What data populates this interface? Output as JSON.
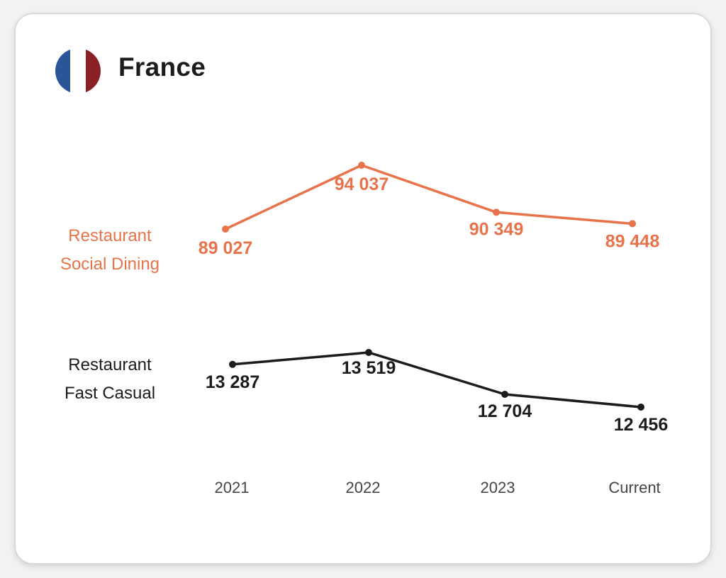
{
  "header": {
    "country": "France",
    "flag_icon": "france-flag-icon",
    "flag_colors": [
      "#2a5599",
      "#ffffff",
      "#8b2026"
    ]
  },
  "chart_data": {
    "type": "line",
    "title": "",
    "xlabel": "",
    "ylabel": "",
    "categories": [
      "2021",
      "2022",
      "2023",
      "Current"
    ],
    "series": [
      {
        "name": "Restaurant Social Dining",
        "name_lines": [
          "Restaurant",
          "Social Dining"
        ],
        "color": "#e8734a",
        "values": [
          89027,
          94037,
          90349,
          89448
        ],
        "labels": [
          "89 027",
          "94 037",
          "90 349",
          "89 448"
        ]
      },
      {
        "name": "Restaurant Fast Casual",
        "name_lines": [
          "Restaurant",
          "Fast Casual"
        ],
        "color": "#1c1c1c",
        "values": [
          13287,
          13519,
          12704,
          12456
        ],
        "labels": [
          "13 287",
          "13 519",
          "12 704",
          "12 456"
        ]
      }
    ],
    "grid": false,
    "legend": "left"
  }
}
